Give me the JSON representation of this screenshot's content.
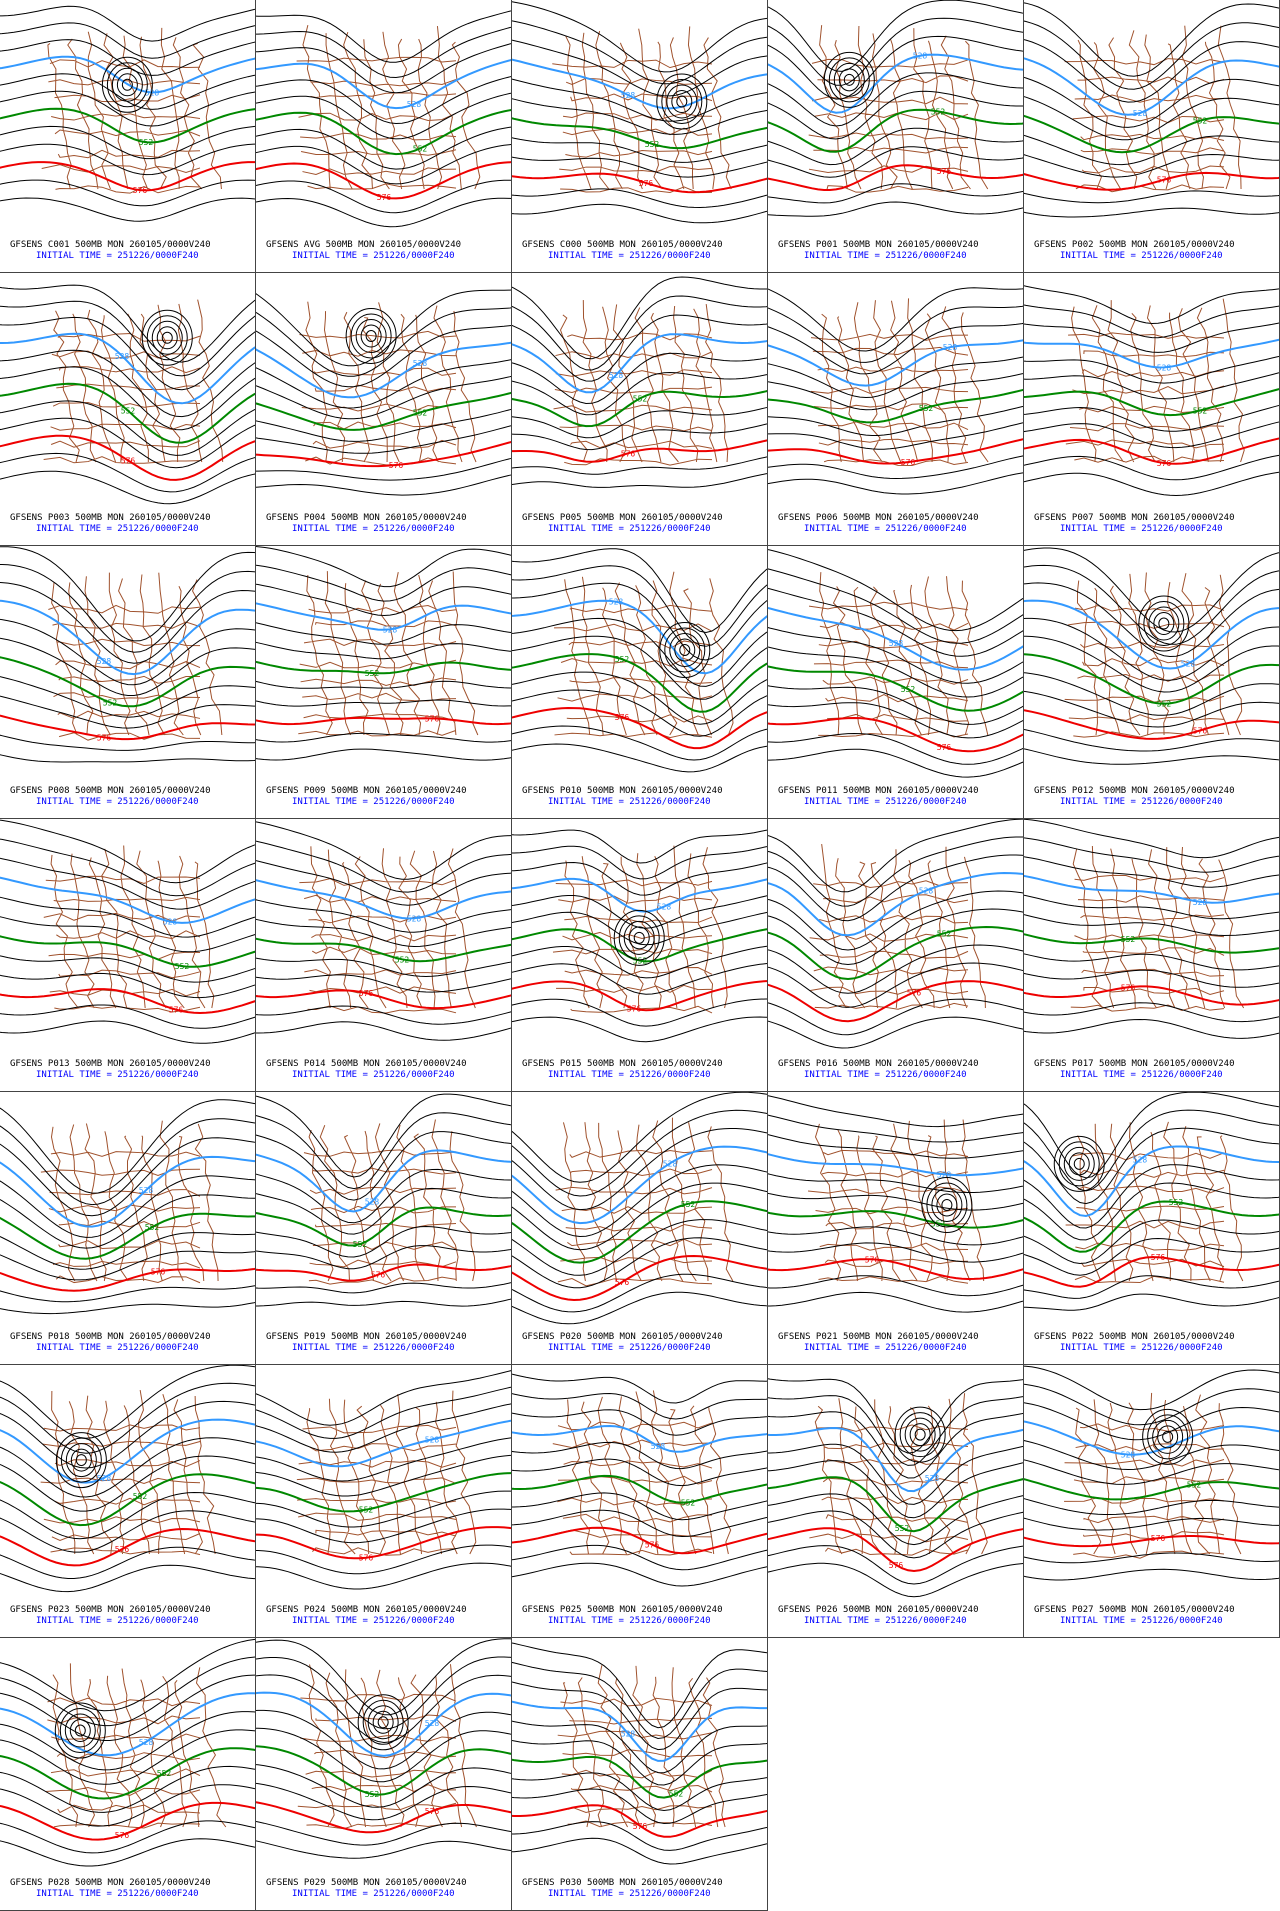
{
  "panels": [
    {
      "title": "GFSENS C001 500MB MON 260105/0000V240",
      "init": "INITIAL TIME = 251226/0000F240"
    },
    {
      "title": "GFSENS AVG 500MB MON 260105/0000V240",
      "init": "INITIAL TIME = 251226/0000F240"
    },
    {
      "title": "GFSENS C000 500MB MON 260105/0000V240",
      "init": "INITIAL TIME = 251226/0000F240"
    },
    {
      "title": "GFSENS P001 500MB MON 260105/0000V240",
      "init": "INITIAL TIME = 251226/0000F240"
    },
    {
      "title": "GFSENS P002 500MB MON 260105/0000V240",
      "init": "INITIAL TIME = 251226/0000F240"
    },
    {
      "title": "GFSENS P003 500MB MON 260105/0000V240",
      "init": "INITIAL TIME = 251226/0000F240"
    },
    {
      "title": "GFSENS P004 500MB MON 260105/0000V240",
      "init": "INITIAL TIME = 251226/0000F240"
    },
    {
      "title": "GFSENS P005 500MB MON 260105/0000V240",
      "init": "INITIAL TIME = 251226/0000F240"
    },
    {
      "title": "GFSENS P006 500MB MON 260105/0000V240",
      "init": "INITIAL TIME = 251226/0000F240"
    },
    {
      "title": "GFSENS P007 500MB MON 260105/0000V240",
      "init": "INITIAL TIME = 251226/0000F240"
    },
    {
      "title": "GFSENS P008 500MB MON 260105/0000V240",
      "init": "INITIAL TIME = 251226/0000F240"
    },
    {
      "title": "GFSENS P009 500MB MON 260105/0000V240",
      "init": "INITIAL TIME = 251226/0000F240"
    },
    {
      "title": "GFSENS P010 500MB MON 260105/0000V240",
      "init": "INITIAL TIME = 251226/0000F240"
    },
    {
      "title": "GFSENS P011 500MB MON 260105/0000V240",
      "init": "INITIAL TIME = 251226/0000F240"
    },
    {
      "title": "GFSENS P012 500MB MON 260105/0000V240",
      "init": "INITIAL TIME = 251226/0000F240"
    },
    {
      "title": "GFSENS P013 500MB MON 260105/0000V240",
      "init": "INITIAL TIME = 251226/0000F240"
    },
    {
      "title": "GFSENS P014 500MB MON 260105/0000V240",
      "init": "INITIAL TIME = 251226/0000F240"
    },
    {
      "title": "GFSENS P015 500MB MON 260105/0000V240",
      "init": "INITIAL TIME = 251226/0000F240"
    },
    {
      "title": "GFSENS P016 500MB MON 260105/0000V240",
      "init": "INITIAL TIME = 251226/0000F240"
    },
    {
      "title": "GFSENS P017 500MB MON 260105/0000V240",
      "init": "INITIAL TIME = 251226/0000F240"
    },
    {
      "title": "GFSENS P018 500MB MON 260105/0000V240",
      "init": "INITIAL TIME = 251226/0000F240"
    },
    {
      "title": "GFSENS P019 500MB MON 260105/0000V240",
      "init": "INITIAL TIME = 251226/0000F240"
    },
    {
      "title": "GFSENS P020 500MB MON 260105/0000V240",
      "init": "INITIAL TIME = 251226/0000F240"
    },
    {
      "title": "GFSENS P021 500MB MON 260105/0000V240",
      "init": "INITIAL TIME = 251226/0000F240"
    },
    {
      "title": "GFSENS P022 500MB MON 260105/0000V240",
      "init": "INITIAL TIME = 251226/0000F240"
    },
    {
      "title": "GFSENS P023 500MB MON 260105/0000V240",
      "init": "INITIAL TIME = 251226/0000F240"
    },
    {
      "title": "GFSENS P024 500MB MON 260105/0000V240",
      "init": "INITIAL TIME = 251226/0000F240"
    },
    {
      "title": "GFSENS P025 500MB MON 260105/0000V240",
      "init": "INITIAL TIME = 251226/0000F240"
    },
    {
      "title": "GFSENS P026 500MB MON 260105/0000V240",
      "init": "INITIAL TIME = 251226/0000F240"
    },
    {
      "title": "GFSENS P027 500MB MON 260105/0000V240",
      "init": "INITIAL TIME = 251226/0000F240"
    },
    {
      "title": "GFSENS P028 500MB MON 260105/0000V240",
      "init": "INITIAL TIME = 251226/0000F240"
    },
    {
      "title": "GFSENS P029 500MB MON 260105/0000V240",
      "init": "INITIAL TIME = 251226/0000F240"
    },
    {
      "title": "GFSENS P030 500MB MON 260105/0000V240",
      "init": "INITIAL TIME = 251226/0000F240"
    }
  ],
  "contour_labels": [
    {
      "label": "528",
      "color": "#3399ff"
    },
    {
      "label": "552",
      "color": "#008800"
    },
    {
      "label": "576",
      "color": "#ee0000"
    }
  ]
}
